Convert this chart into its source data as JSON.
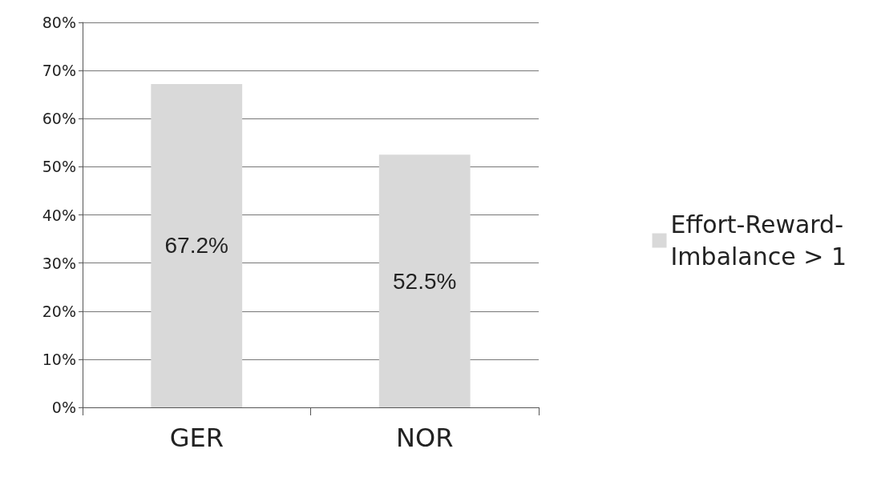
{
  "chart_data": {
    "type": "bar",
    "categories": [
      "GER",
      "NOR"
    ],
    "series": [
      {
        "name": "Effort-Reward-Imbalance > 1",
        "color": "#d9d9d9",
        "values": [
          67.2,
          52.5
        ],
        "value_labels": [
          "67.2%",
          "52.5%"
        ]
      }
    ],
    "ylim": [
      0,
      80
    ],
    "yticks": [
      {
        "value": 0,
        "label": "0%"
      },
      {
        "value": 10,
        "label": "10%"
      },
      {
        "value": 20,
        "label": "20%"
      },
      {
        "value": 30,
        "label": "30%"
      },
      {
        "value": 40,
        "label": "40%"
      },
      {
        "value": 50,
        "label": "50%"
      },
      {
        "value": 60,
        "label": "60%"
      },
      {
        "value": 70,
        "label": "70%"
      },
      {
        "value": 80,
        "label": "80%"
      }
    ],
    "grid": true,
    "legend": "right"
  }
}
